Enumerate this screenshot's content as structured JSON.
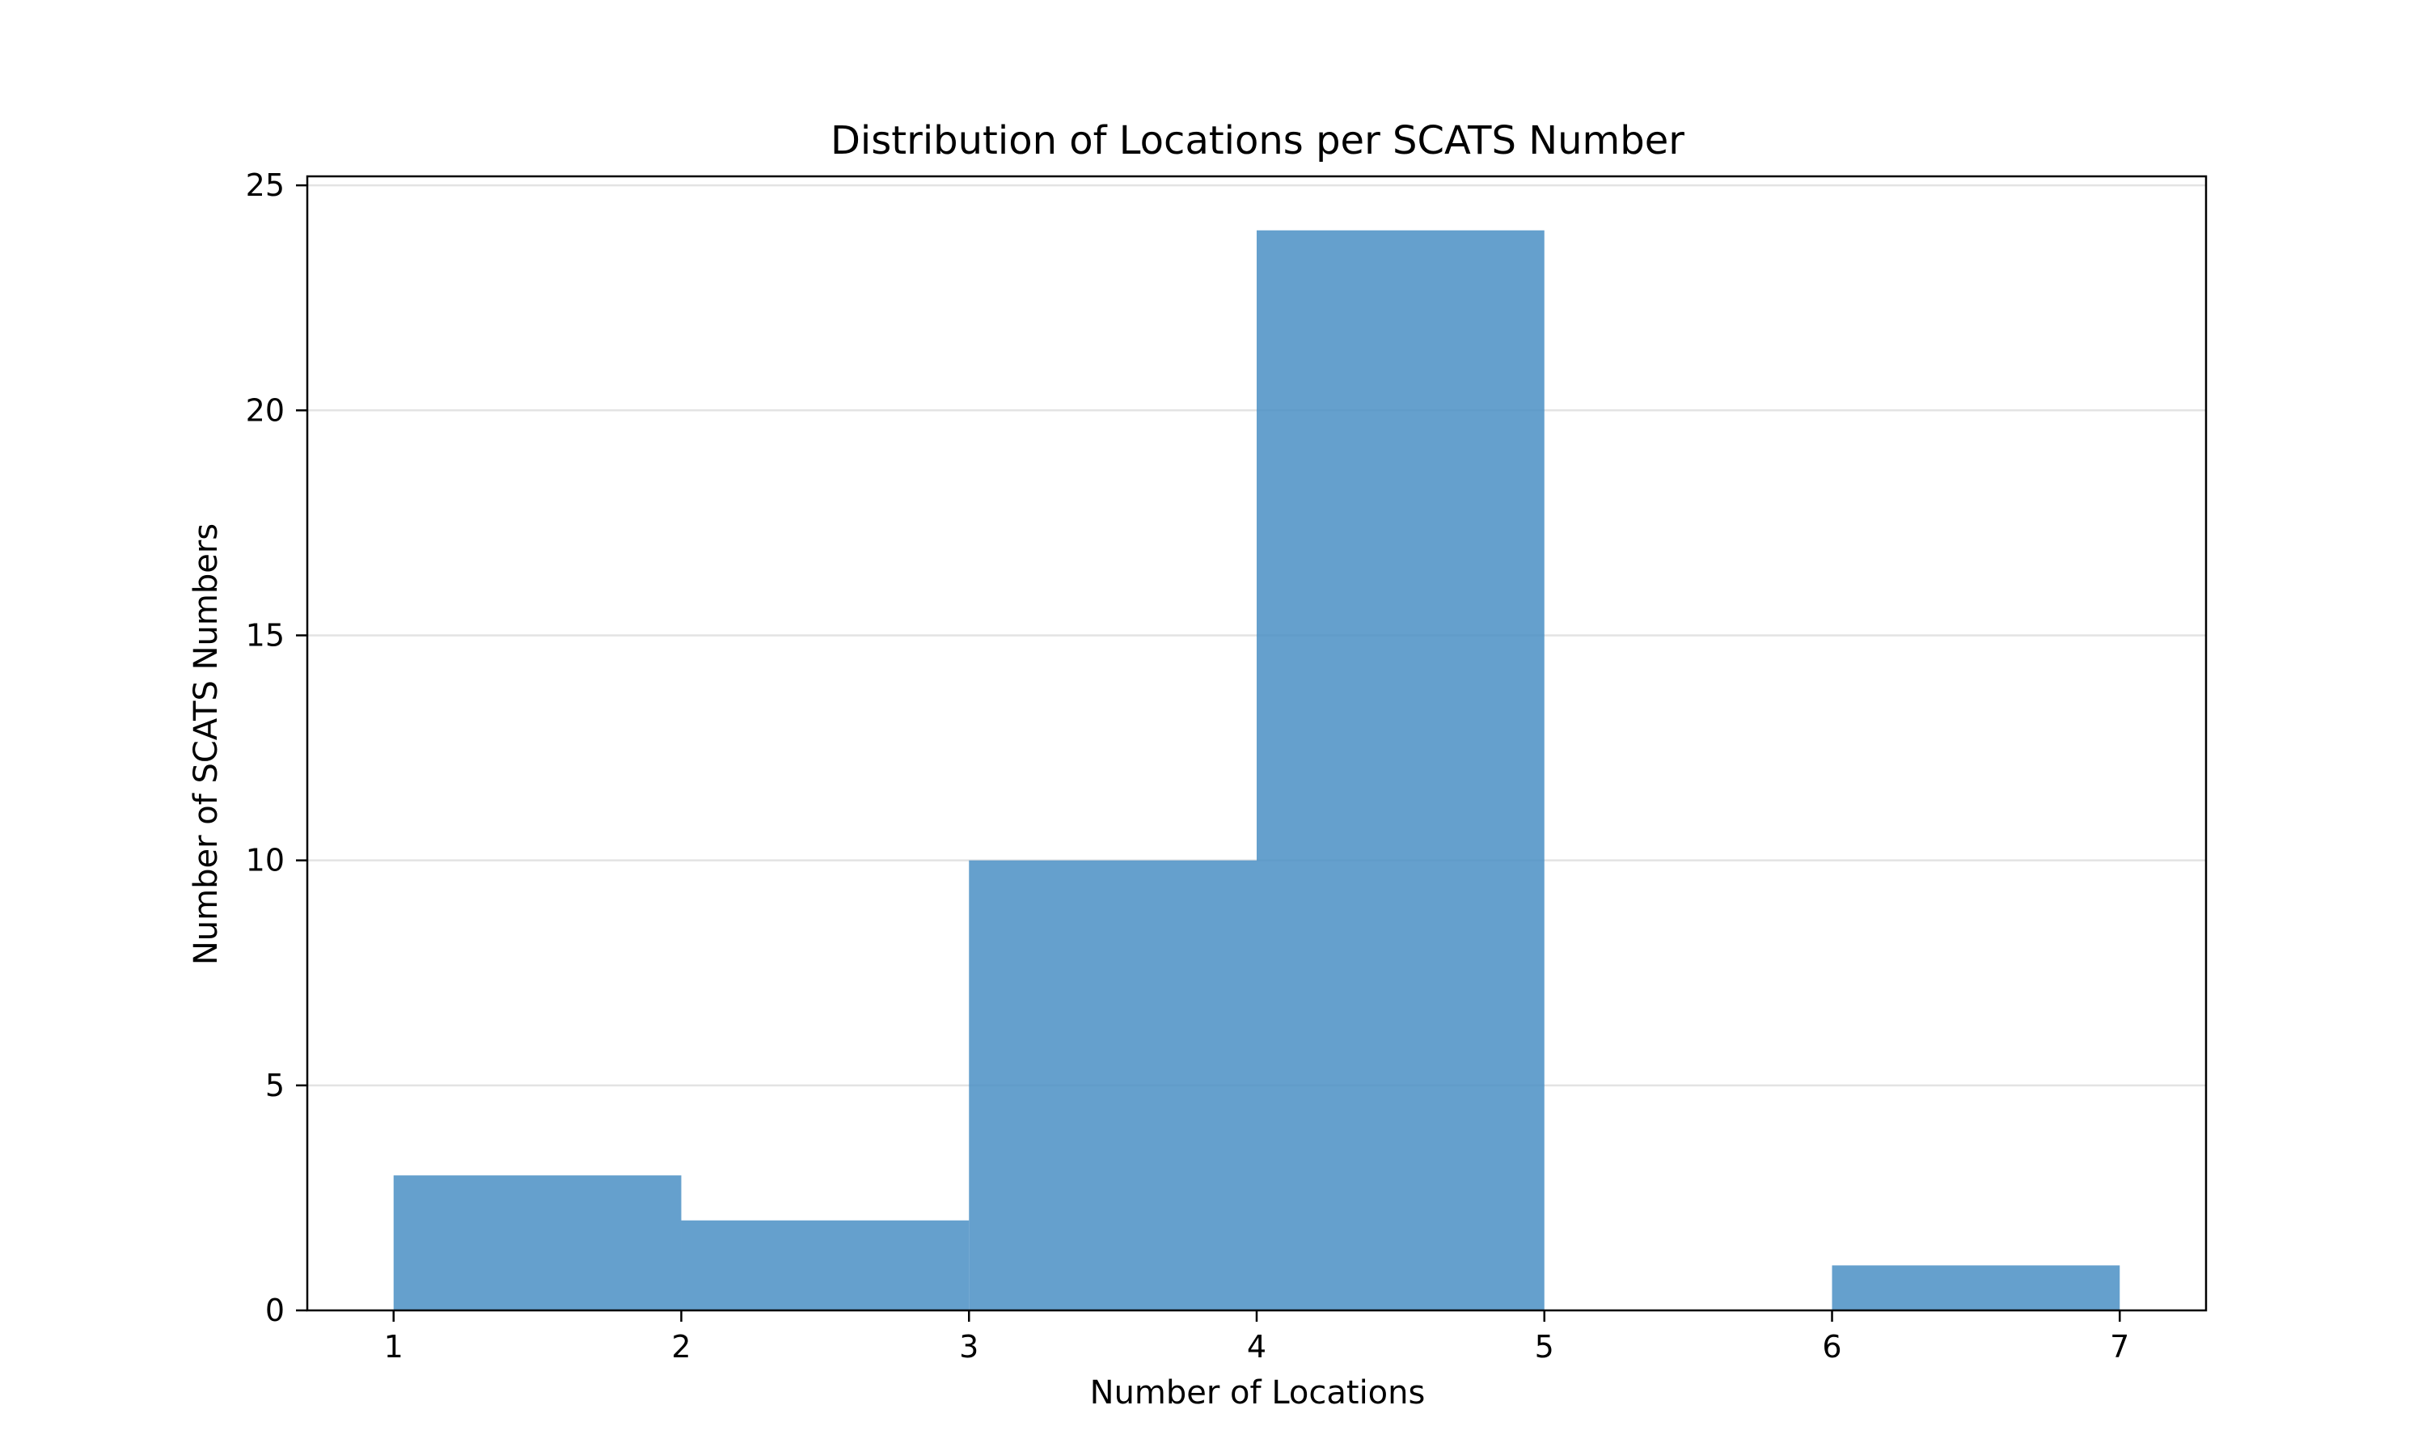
{
  "chart_data": {
    "type": "bar",
    "title": "Distribution of Locations per SCATS Number",
    "xlabel": "Number of Locations",
    "ylabel": "Number of SCATS Numbers",
    "bins": [
      {
        "x0": 1,
        "x1": 2,
        "value": 3
      },
      {
        "x0": 2,
        "x1": 3,
        "value": 2
      },
      {
        "x0": 3,
        "x1": 4,
        "value": 10
      },
      {
        "x0": 4,
        "x1": 5,
        "value": 24
      },
      {
        "x0": 5,
        "x1": 6,
        "value": 0
      },
      {
        "x0": 6,
        "x1": 7,
        "value": 1
      }
    ],
    "xticks": [
      1,
      2,
      3,
      4,
      5,
      6,
      7
    ],
    "yticks": [
      0,
      5,
      10,
      15,
      20,
      25
    ],
    "xlim": [
      0.7,
      7.3
    ],
    "ylim": [
      0,
      25.2
    ],
    "grid": {
      "y": true,
      "x": false
    },
    "bar_color": "#4a8fc4",
    "bar_opacity": 0.85,
    "grid_color": "#e3e3e3"
  }
}
